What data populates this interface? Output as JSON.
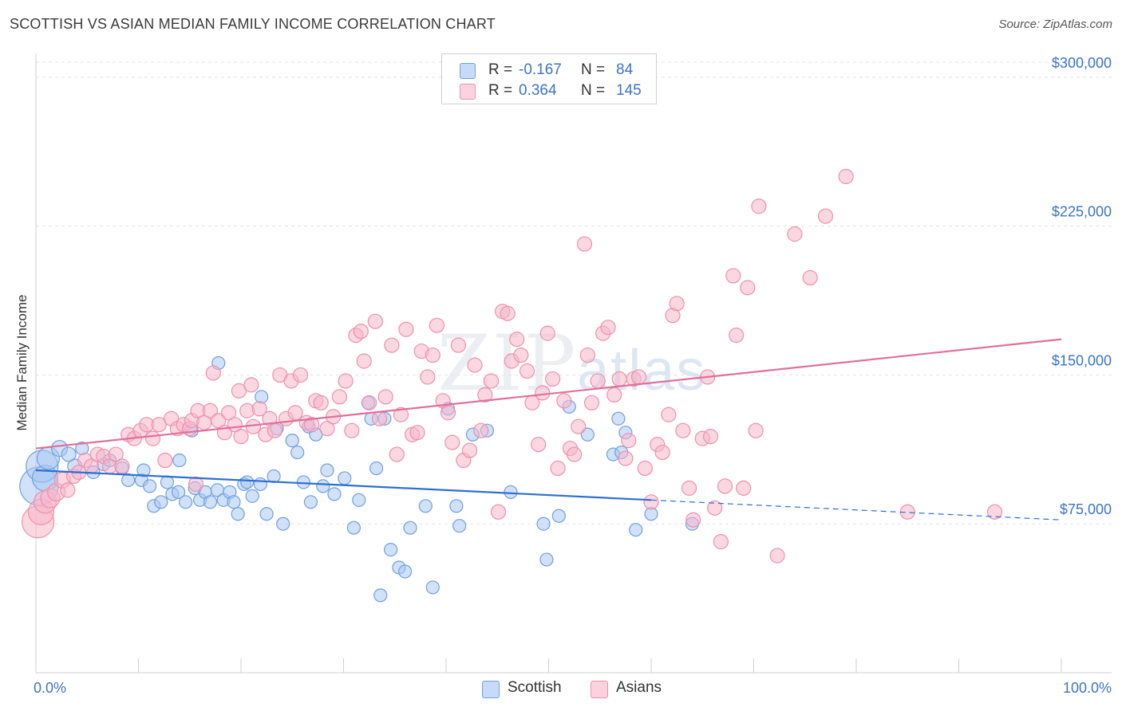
{
  "title": "SCOTTISH VS ASIAN MEDIAN FAMILY INCOME CORRELATION CHART",
  "source": "Source: ZipAtlas.com",
  "watermark": {
    "zip": "ZIP",
    "atlas": "atlas"
  },
  "stats": [
    {
      "r_label": "R =",
      "r_value": "-0.167",
      "n_label": "N =",
      "n_value": "84",
      "color": "#a9c8f2"
    },
    {
      "r_label": "R =",
      "r_value": "0.364",
      "n_label": "N =",
      "n_value": "145",
      "color": "#f7b7cb"
    }
  ],
  "legend": [
    {
      "label": "Scottish",
      "color": "#a9c8f2"
    },
    {
      "label": "Asians",
      "color": "#f7b7cb"
    }
  ],
  "chart_data": {
    "type": "scatter",
    "ylabel": "Median Family Income",
    "xlim": [
      0,
      100
    ],
    "ylim": [
      0,
      312000
    ],
    "y_ticks": [
      {
        "value": 75000,
        "label": "$75,000"
      },
      {
        "value": 150000,
        "label": "$150,000"
      },
      {
        "value": 225000,
        "label": "$225,000"
      },
      {
        "value": 300000,
        "label": "$300,000"
      }
    ],
    "x_tick_labels": [
      {
        "value": 0,
        "label": "0.0%"
      },
      {
        "value": 100,
        "label": "100.0%"
      }
    ],
    "x_minor_ticks": [
      0,
      10,
      20,
      30,
      40,
      50,
      60,
      70,
      80,
      90,
      100
    ],
    "grid": "horizontal dashed",
    "series": [
      {
        "name": "Scottish",
        "color": "#6fa0e0",
        "fill": "#a9c8f2",
        "trend": {
          "x": [
            0,
            60
          ],
          "y": [
            102000,
            87000
          ],
          "dashed_to": [
            100,
            77000
          ],
          "color": "#2e6fd1"
        },
        "points": [
          [
            0.3,
            94000,
            24
          ],
          [
            0.6,
            104000,
            20
          ],
          [
            0.9,
            98000,
            16
          ],
          [
            1.2,
            108000,
            14
          ],
          [
            2.3,
            113000,
            10
          ],
          [
            3.2,
            110000,
            9
          ],
          [
            3.8,
            104000,
            9
          ],
          [
            4.5,
            113000,
            8
          ],
          [
            5.6,
            101000,
            8
          ],
          [
            6.6,
            105000,
            8
          ],
          [
            7.2,
            107000,
            8
          ],
          [
            8.4,
            103000,
            8
          ],
          [
            9.0,
            97000,
            8
          ],
          [
            10.3,
            97000,
            8
          ],
          [
            10.5,
            102000,
            8
          ],
          [
            11.1,
            94000,
            8
          ],
          [
            11.5,
            84000,
            8
          ],
          [
            12.2,
            86000,
            8
          ],
          [
            12.8,
            96000,
            8
          ],
          [
            13.3,
            90000,
            8
          ],
          [
            13.9,
            91000,
            8
          ],
          [
            14.0,
            107000,
            8
          ],
          [
            14.6,
            86000,
            8
          ],
          [
            15.2,
            122000,
            8
          ],
          [
            15.5,
            93000,
            8
          ],
          [
            16.0,
            87000,
            8
          ],
          [
            16.5,
            91000,
            8
          ],
          [
            17.0,
            86000,
            8
          ],
          [
            17.7,
            92000,
            8
          ],
          [
            18.3,
            87000,
            8
          ],
          [
            17.8,
            156000,
            8
          ],
          [
            18.9,
            91000,
            8
          ],
          [
            19.3,
            86000,
            8
          ],
          [
            19.7,
            80000,
            8
          ],
          [
            20.3,
            95000,
            8
          ],
          [
            20.6,
            96000,
            8
          ],
          [
            21.1,
            89000,
            8
          ],
          [
            21.9,
            95000,
            8
          ],
          [
            22.5,
            80000,
            8
          ],
          [
            23.2,
            99000,
            8
          ],
          [
            22.0,
            139000,
            8
          ],
          [
            23.5,
            123000,
            8
          ],
          [
            24.1,
            75000,
            8
          ],
          [
            25.0,
            117000,
            8
          ],
          [
            25.5,
            111000,
            8
          ],
          [
            26.1,
            96000,
            8
          ],
          [
            26.8,
            86000,
            8
          ],
          [
            26.6,
            124000,
            8
          ],
          [
            27.3,
            120000,
            8
          ],
          [
            28.0,
            94000,
            8
          ],
          [
            28.4,
            102000,
            8
          ],
          [
            29.1,
            90000,
            8
          ],
          [
            30.1,
            98000,
            8
          ],
          [
            31.0,
            73000,
            8
          ],
          [
            31.5,
            87000,
            8
          ],
          [
            32.4,
            136000,
            8
          ],
          [
            32.7,
            128000,
            8
          ],
          [
            33.2,
            103000,
            8
          ],
          [
            34.0,
            128000,
            8
          ],
          [
            34.6,
            62000,
            8
          ],
          [
            35.4,
            53000,
            8
          ],
          [
            36.0,
            51000,
            8
          ],
          [
            33.6,
            39000,
            8
          ],
          [
            36.5,
            73000,
            8
          ],
          [
            38.0,
            84000,
            8
          ],
          [
            38.7,
            43000,
            8
          ],
          [
            40.2,
            133000,
            8
          ],
          [
            41.0,
            84000,
            8
          ],
          [
            41.3,
            74000,
            8
          ],
          [
            42.6,
            120000,
            8
          ],
          [
            44.0,
            122000,
            8
          ],
          [
            46.3,
            91000,
            8
          ],
          [
            49.5,
            75000,
            8
          ],
          [
            49.8,
            57000,
            8
          ],
          [
            51.0,
            79000,
            8
          ],
          [
            52.0,
            134000,
            8
          ],
          [
            53.8,
            120000,
            8
          ],
          [
            56.3,
            110000,
            8
          ],
          [
            56.8,
            128000,
            8
          ],
          [
            57.1,
            111000,
            8
          ],
          [
            57.5,
            121000,
            8
          ],
          [
            58.5,
            72000,
            8
          ],
          [
            60.0,
            80000,
            8
          ],
          [
            64.0,
            75000,
            8
          ]
        ]
      },
      {
        "name": "Asians",
        "color": "#ee90ad",
        "fill": "#f7b7cb",
        "trend": {
          "x": [
            0,
            100
          ],
          "y": [
            113000,
            168000
          ],
          "color": "#e0709a"
        },
        "points": [
          [
            0.2,
            76000,
            20
          ],
          [
            0.5,
            81000,
            16
          ],
          [
            0.9,
            86000,
            14
          ],
          [
            1.4,
            88000,
            12
          ],
          [
            2.0,
            91000,
            11
          ],
          [
            2.6,
            97000,
            10
          ],
          [
            3.1,
            92000,
            9
          ],
          [
            3.7,
            99000,
            9
          ],
          [
            4.2,
            101000,
            9
          ],
          [
            4.8,
            107000,
            9
          ],
          [
            5.4,
            104000,
            9
          ],
          [
            6.0,
            110000,
            9
          ],
          [
            6.6,
            109000,
            9
          ],
          [
            7.2,
            104000,
            9
          ],
          [
            7.8,
            110000,
            9
          ],
          [
            8.4,
            104000,
            9
          ],
          [
            9.0,
            120000,
            9
          ],
          [
            9.6,
            118000,
            9
          ],
          [
            10.2,
            122000,
            9
          ],
          [
            10.8,
            125000,
            9
          ],
          [
            11.4,
            118000,
            9
          ],
          [
            12.0,
            125000,
            9
          ],
          [
            12.6,
            107000,
            9
          ],
          [
            13.2,
            128000,
            9
          ],
          [
            13.8,
            123000,
            9
          ],
          [
            14.4,
            125000,
            9
          ],
          [
            15.0,
            123000,
            9
          ],
          [
            15.6,
            95000,
            9
          ],
          [
            15.2,
            127000,
            9
          ],
          [
            15.8,
            132000,
            9
          ],
          [
            16.4,
            126000,
            9
          ],
          [
            17.0,
            132000,
            9
          ],
          [
            17.3,
            151000,
            9
          ],
          [
            17.8,
            127000,
            9
          ],
          [
            18.4,
            121000,
            9
          ],
          [
            18.8,
            131000,
            9
          ],
          [
            19.4,
            125000,
            9
          ],
          [
            20.0,
            119000,
            9
          ],
          [
            20.6,
            132000,
            9
          ],
          [
            21.2,
            124000,
            9
          ],
          [
            19.8,
            142000,
            9
          ],
          [
            21.0,
            145000,
            9
          ],
          [
            21.8,
            133000,
            9
          ],
          [
            22.4,
            120000,
            9
          ],
          [
            22.8,
            128000,
            9
          ],
          [
            23.3,
            122000,
            9
          ],
          [
            23.8,
            150000,
            9
          ],
          [
            24.4,
            128000,
            9
          ],
          [
            24.9,
            147000,
            9
          ],
          [
            25.3,
            131000,
            9
          ],
          [
            25.8,
            150000,
            9
          ],
          [
            26.4,
            126000,
            9
          ],
          [
            26.9,
            125000,
            9
          ],
          [
            27.3,
            137000,
            9
          ],
          [
            27.8,
            136000,
            9
          ],
          [
            28.4,
            123000,
            9
          ],
          [
            29.0,
            129000,
            9
          ],
          [
            29.6,
            139000,
            9
          ],
          [
            30.2,
            147000,
            9
          ],
          [
            30.8,
            122000,
            9
          ],
          [
            31.2,
            170000,
            9
          ],
          [
            31.7,
            172000,
            9
          ],
          [
            32.0,
            157000,
            9
          ],
          [
            32.5,
            136000,
            9
          ],
          [
            33.1,
            177000,
            9
          ],
          [
            33.5,
            128000,
            9
          ],
          [
            34.1,
            139000,
            9
          ],
          [
            34.7,
            165000,
            9
          ],
          [
            35.2,
            110000,
            9
          ],
          [
            35.6,
            130000,
            9
          ],
          [
            36.1,
            173000,
            9
          ],
          [
            36.7,
            120000,
            9
          ],
          [
            37.2,
            121000,
            9
          ],
          [
            37.6,
            162000,
            9
          ],
          [
            38.2,
            149000,
            9
          ],
          [
            38.7,
            160000,
            9
          ],
          [
            39.1,
            175000,
            9
          ],
          [
            39.7,
            137000,
            9
          ],
          [
            40.2,
            131000,
            9
          ],
          [
            40.6,
            116000,
            9
          ],
          [
            41.2,
            165000,
            9
          ],
          [
            41.7,
            107000,
            9
          ],
          [
            42.3,
            112000,
            9
          ],
          [
            42.8,
            155000,
            9
          ],
          [
            43.4,
            122000,
            9
          ],
          [
            43.8,
            140000,
            9
          ],
          [
            44.4,
            147000,
            9
          ],
          [
            45.1,
            81000,
            9
          ],
          [
            45.5,
            182000,
            9
          ],
          [
            46.0,
            181000,
            9
          ],
          [
            46.4,
            157000,
            9
          ],
          [
            46.9,
            168000,
            9
          ],
          [
            47.3,
            160000,
            9
          ],
          [
            47.9,
            152000,
            9
          ],
          [
            48.4,
            136000,
            9
          ],
          [
            49.0,
            115000,
            9
          ],
          [
            49.4,
            141000,
            9
          ],
          [
            49.9,
            171000,
            9
          ],
          [
            50.4,
            148000,
            9
          ],
          [
            50.9,
            103000,
            9
          ],
          [
            51.5,
            137000,
            9
          ],
          [
            52.1,
            113000,
            9
          ],
          [
            52.5,
            110000,
            9
          ],
          [
            52.9,
            124000,
            9
          ],
          [
            53.5,
            216000,
            9
          ],
          [
            53.8,
            160000,
            9
          ],
          [
            54.2,
            136000,
            9
          ],
          [
            54.8,
            147000,
            9
          ],
          [
            55.3,
            171000,
            9
          ],
          [
            55.8,
            174000,
            9
          ],
          [
            56.4,
            140000,
            9
          ],
          [
            56.9,
            148000,
            9
          ],
          [
            57.5,
            108000,
            9
          ],
          [
            57.8,
            117000,
            9
          ],
          [
            58.3,
            148000,
            9
          ],
          [
            58.8,
            149000,
            9
          ],
          [
            59.4,
            103000,
            9
          ],
          [
            60.0,
            86000,
            9
          ],
          [
            60.6,
            115000,
            9
          ],
          [
            61.1,
            111000,
            9
          ],
          [
            61.7,
            130000,
            9
          ],
          [
            62.1,
            180000,
            9
          ],
          [
            62.5,
            186000,
            9
          ],
          [
            63.1,
            122000,
            9
          ],
          [
            63.7,
            93000,
            9
          ],
          [
            64.1,
            77000,
            9
          ],
          [
            65.0,
            118000,
            9
          ],
          [
            65.5,
            149000,
            9
          ],
          [
            65.8,
            119000,
            9
          ],
          [
            66.2,
            83000,
            9
          ],
          [
            66.8,
            66000,
            9
          ],
          [
            67.2,
            94000,
            9
          ],
          [
            68.0,
            200000,
            9
          ],
          [
            68.3,
            170000,
            9
          ],
          [
            69.0,
            93000,
            9
          ],
          [
            69.4,
            194000,
            9
          ],
          [
            70.2,
            122000,
            9
          ],
          [
            70.5,
            235000,
            9
          ],
          [
            72.3,
            59000,
            9
          ],
          [
            74.0,
            221000,
            9
          ],
          [
            75.5,
            199000,
            9
          ],
          [
            77.0,
            230000,
            9
          ],
          [
            79.0,
            250000,
            9
          ],
          [
            85.0,
            81000,
            9
          ],
          [
            93.5,
            81000,
            9
          ]
        ]
      }
    ]
  }
}
